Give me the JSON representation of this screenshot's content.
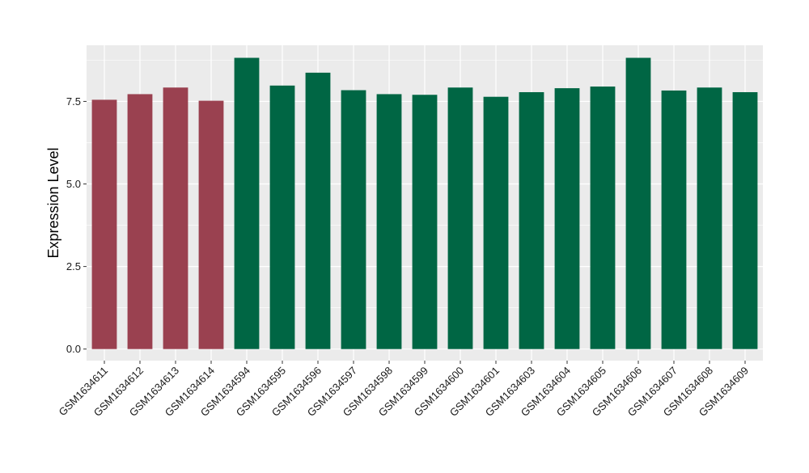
{
  "chart_data": {
    "type": "bar",
    "title": "",
    "xlabel": "",
    "ylabel": "Expression Level",
    "ylim": [
      -0.35,
      9.2
    ],
    "yticks": [
      0.0,
      2.5,
      5.0,
      7.5
    ],
    "ytick_labels": [
      "0.0",
      "2.5",
      "5.0",
      "7.5"
    ],
    "grid": true,
    "categories": [
      "GSM1634611",
      "GSM1634612",
      "GSM1634613",
      "GSM1634614",
      "GSM1634594",
      "GSM1634595",
      "GSM1634596",
      "GSM1634597",
      "GSM1634598",
      "GSM1634599",
      "GSM1634600",
      "GSM1634601",
      "GSM1634603",
      "GSM1634604",
      "GSM1634605",
      "GSM1634606",
      "GSM1634607",
      "GSM1634608",
      "GSM1634609"
    ],
    "values": [
      7.55,
      7.72,
      7.92,
      7.52,
      8.82,
      7.98,
      8.37,
      7.84,
      7.72,
      7.7,
      7.92,
      7.64,
      7.78,
      7.9,
      7.95,
      8.82,
      7.83,
      7.92,
      7.78
    ],
    "groups": [
      0,
      0,
      0,
      0,
      1,
      1,
      1,
      1,
      1,
      1,
      1,
      1,
      1,
      1,
      1,
      1,
      1,
      1,
      1
    ],
    "group_colors": [
      "#9a4150",
      "#006644"
    ],
    "panel_background": "#ebebeb",
    "grid_color": "#ffffff"
  }
}
